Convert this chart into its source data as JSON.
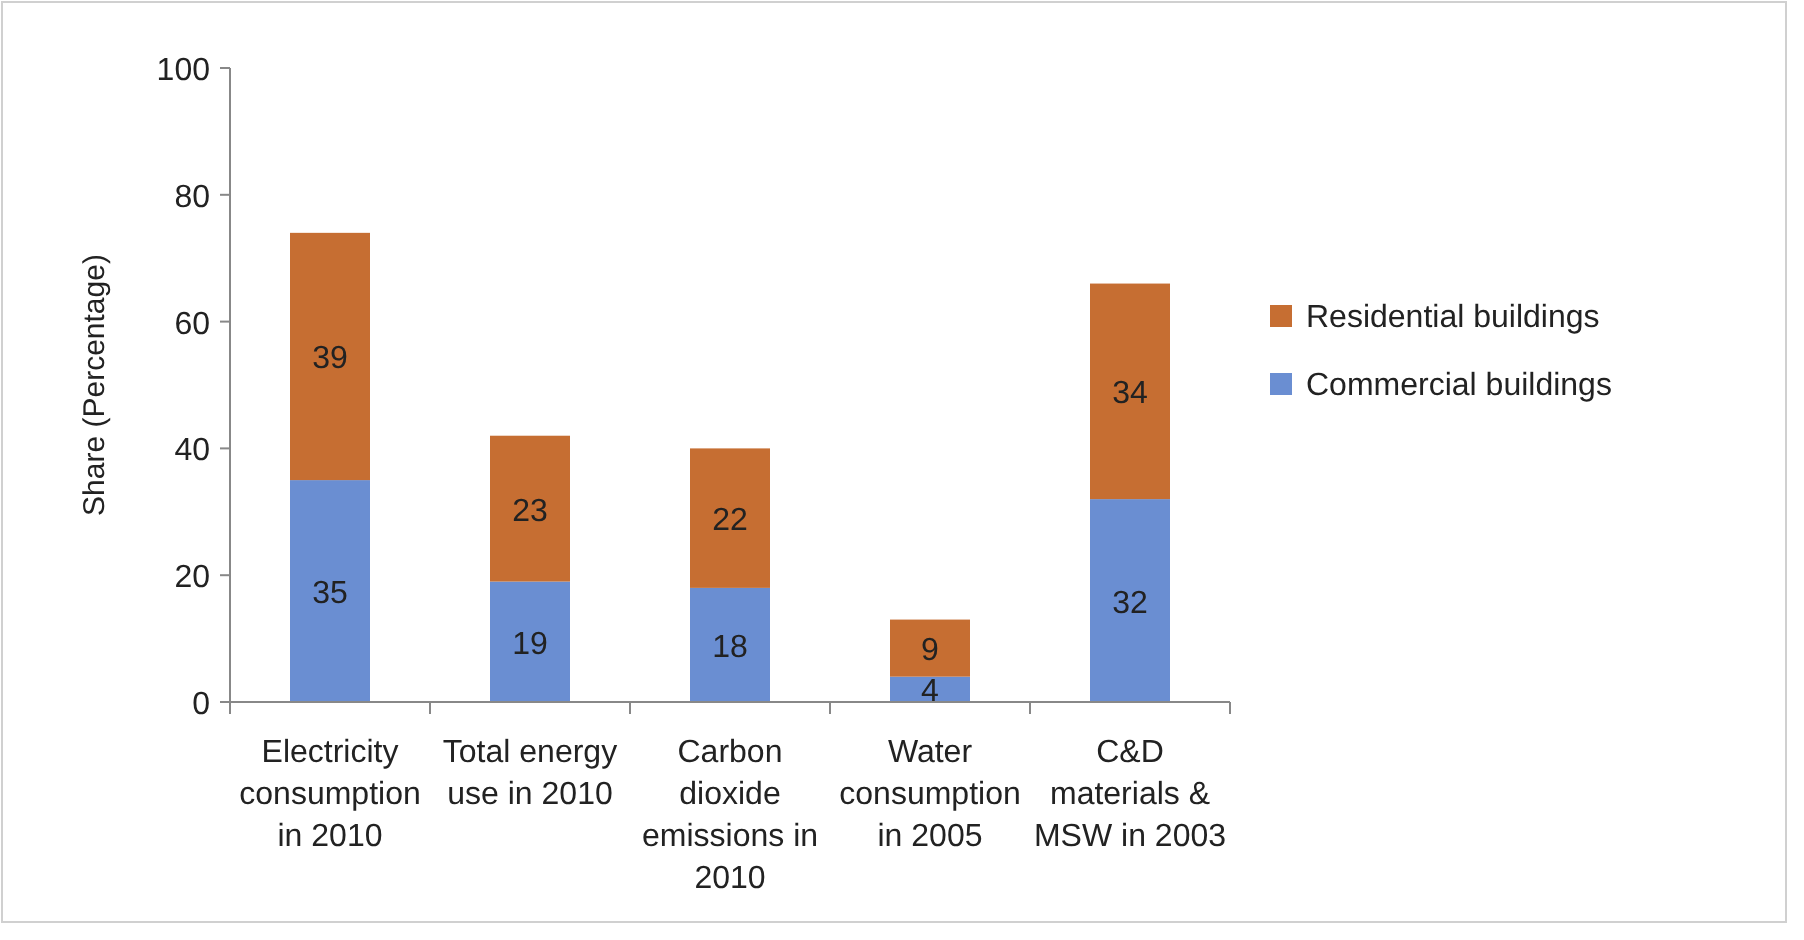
{
  "chart_data": {
    "type": "bar",
    "stacked": true,
    "ylabel": "Share (Percentage)",
    "categories": [
      "Electricity consumption in 2010",
      "Total energy use in 2010",
      "Carbon dioxide emissions in 2010",
      "Water consumption in 2005",
      "C&D materials & MSW in 2003"
    ],
    "series": [
      {
        "name": "Commercial buildings",
        "color": "#6a8ed2",
        "values": [
          35,
          19,
          18,
          4,
          32
        ]
      },
      {
        "name": "Residential buildings",
        "color": "#c66e32",
        "values": [
          39,
          23,
          22,
          9,
          34
        ]
      }
    ],
    "ylim": [
      0,
      100
    ],
    "yticks": [
      0,
      20,
      40,
      60,
      80,
      100
    ],
    "grid": false,
    "legend": "right",
    "data_labels": true
  }
}
